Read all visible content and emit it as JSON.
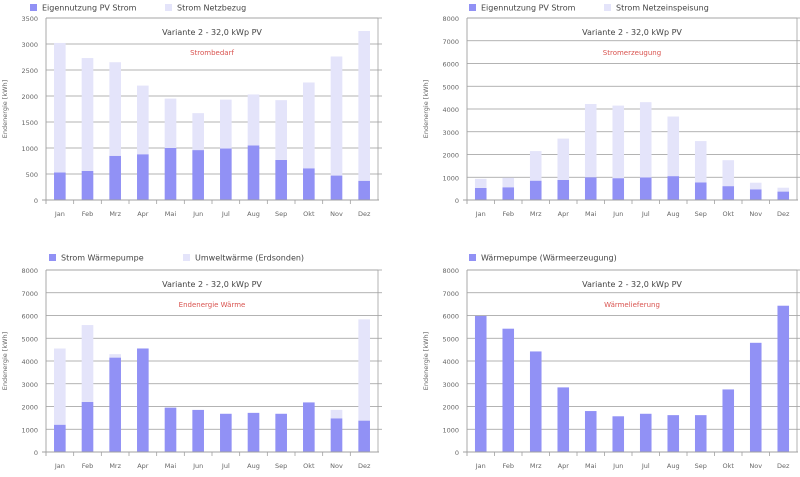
{
  "colors": {
    "primary": "#9191f5",
    "secondary": "#e4e4fa",
    "grid": "#9a9a9a",
    "axis": "#a0a0a0",
    "tick_text": "#666666",
    "title_text": "#444444",
    "subtitle_text": "#d9534f"
  },
  "chart_data": [
    {
      "id": "strombedarf",
      "type": "bar",
      "stacked": true,
      "title": "Variante 2 - 32,0 kWp PV",
      "subtitle": "Strombedarf",
      "xlabel": "",
      "ylabel": "Endenergie [kWh]",
      "ylim": [
        0,
        3500
      ],
      "yticks": [
        0,
        500,
        1000,
        1500,
        2000,
        2500,
        3000,
        3500
      ],
      "grid": true,
      "legend_position": "top-left",
      "categories": [
        "Jan",
        "Feb",
        "Mrz",
        "Apr",
        "Mai",
        "Jun",
        "Jul",
        "Aug",
        "Sep",
        "Okt",
        "Nov",
        "Dez"
      ],
      "series": [
        {
          "name": "Eigennutzung PV Strom",
          "color": "#9191f5",
          "values": [
            530,
            560,
            850,
            880,
            1000,
            960,
            990,
            1050,
            770,
            610,
            470,
            370
          ]
        },
        {
          "name": "Strom Netzbezug",
          "color": "#e4e4fa",
          "values": [
            2490,
            2170,
            1800,
            1320,
            950,
            710,
            940,
            980,
            1150,
            1650,
            2290,
            2880
          ]
        }
      ]
    },
    {
      "id": "stromerzeugung",
      "type": "bar",
      "stacked": true,
      "title": "Variante 2 - 32,0 kWp PV",
      "subtitle": "Stromerzeugung",
      "xlabel": "",
      "ylabel": "Endenergie [kWh]",
      "ylim": [
        0,
        8000
      ],
      "yticks": [
        0,
        1000,
        2000,
        3000,
        4000,
        5000,
        6000,
        7000,
        8000
      ],
      "grid": true,
      "legend_position": "top-left",
      "categories": [
        "Jan",
        "Feb",
        "Mrz",
        "Apr",
        "Mai",
        "Jun",
        "Jul",
        "Aug",
        "Sep",
        "Okt",
        "Nov",
        "Dez"
      ],
      "series": [
        {
          "name": "Eigennutzung PV Strom",
          "color": "#9191f5",
          "values": [
            530,
            560,
            850,
            880,
            1000,
            960,
            990,
            1050,
            770,
            610,
            470,
            370
          ]
        },
        {
          "name": "Strom Netzeinspeisung",
          "color": "#e4e4fa",
          "values": [
            400,
            420,
            1300,
            1820,
            3220,
            3190,
            3310,
            2620,
            1820,
            1140,
            290,
            170
          ]
        }
      ]
    },
    {
      "id": "endenergie-waerme",
      "type": "bar",
      "stacked": true,
      "title": "Variante 2 - 32,0 kWp PV",
      "subtitle": "Endenergie Wärme",
      "xlabel": "",
      "ylabel": "Endenergie [kWh]",
      "ylim": [
        0,
        8000
      ],
      "yticks": [
        0,
        1000,
        2000,
        3000,
        4000,
        5000,
        6000,
        7000,
        8000
      ],
      "grid": true,
      "legend_position": "top-left",
      "categories": [
        "Jan",
        "Feb",
        "Mrz",
        "Apr",
        "Mai",
        "Jun",
        "Jul",
        "Aug",
        "Sep",
        "Okt",
        "Nov",
        "Dez"
      ],
      "series": [
        {
          "name": "Strom Wärmepumpe",
          "color": "#9191f5",
          "values": [
            1200,
            2200,
            4150,
            4550,
            1950,
            1850,
            1680,
            1720,
            1680,
            2180,
            1480,
            1380
          ]
        },
        {
          "name": "Umweltwärme (Erdsonden)",
          "color": "#e4e4fa",
          "values": [
            3350,
            3380,
            150,
            0,
            0,
            0,
            0,
            0,
            0,
            0,
            370,
            4450
          ]
        }
      ]
    },
    {
      "id": "waermelieferung",
      "type": "bar",
      "stacked": false,
      "title": "Variante 2 - 32,0 kWp PV",
      "subtitle": "Wärmelieferung",
      "xlabel": "",
      "ylabel": "Endenergie [kWh]",
      "ylim": [
        0,
        8000
      ],
      "yticks": [
        0,
        1000,
        2000,
        3000,
        4000,
        5000,
        6000,
        7000,
        8000
      ],
      "grid": true,
      "legend_position": "top-left",
      "categories": [
        "Jan",
        "Feb",
        "Mrz",
        "Apr",
        "Mai",
        "Jun",
        "Jul",
        "Aug",
        "Sep",
        "Okt",
        "Nov",
        "Dez"
      ],
      "series": [
        {
          "name": "Wärmepumpe (Wärmeerzeugung)",
          "color": "#9191f5",
          "values": [
            5980,
            5420,
            4420,
            2840,
            1800,
            1570,
            1680,
            1620,
            1620,
            2750,
            4800,
            6430
          ]
        }
      ]
    }
  ]
}
